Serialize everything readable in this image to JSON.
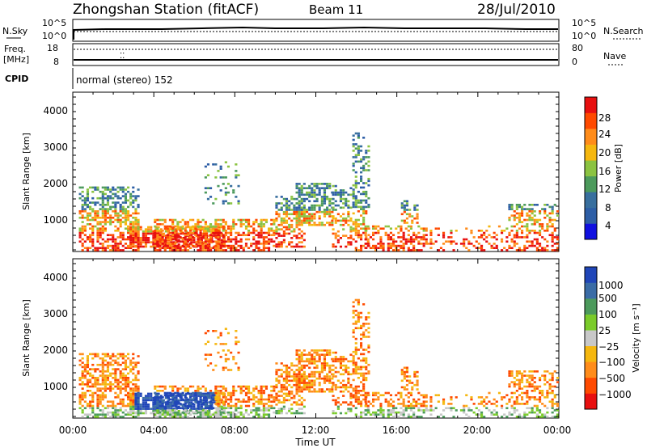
{
  "header": {
    "station": "Zhongshan Station (fitACF)",
    "beam": "Beam 11",
    "date": "28/Jul/2010"
  },
  "noise_panel": {
    "left_label": "N.Sky",
    "left_ticks": [
      "10^5",
      "10^0"
    ],
    "right_label": "N.Search",
    "right_ticks": [
      "10^5",
      "10^0"
    ]
  },
  "freq_panel": {
    "left_label_1": "Freq.",
    "left_label_2": "[MHz]",
    "left_ticks": [
      "18",
      "8"
    ],
    "right_label": "Nave",
    "right_ticks": [
      "80",
      "0"
    ]
  },
  "cpid_panel": {
    "label": "CPID",
    "mode_text": "normal (stereo) 152"
  },
  "chart_data": [
    {
      "type": "heatmap",
      "parameter": "Power",
      "ylabel": "Slant Range [km]",
      "y_ticks": [
        "1000",
        "2000",
        "3000",
        "4000"
      ],
      "ylim": [
        180,
        4600
      ],
      "x_range_hours": [
        0,
        24
      ],
      "colorbar_label": "Power [dB]",
      "colorbar_ticks": [
        "28",
        "24",
        "20",
        "16",
        "12",
        "8",
        "4"
      ],
      "colorbar_colors": [
        "#e81010",
        "#ff4a00",
        "#ff8c1a",
        "#f5b70f",
        "#8bc341",
        "#4c9a5c",
        "#386f9e",
        "#2d5ea6",
        "#1010e0"
      ]
    },
    {
      "type": "heatmap",
      "parameter": "Velocity",
      "ylabel": "Slant Range [km]",
      "y_ticks": [
        "1000",
        "2000",
        "3000",
        "4000"
      ],
      "ylim": [
        180,
        4600
      ],
      "x_range_hours": [
        0,
        24
      ],
      "colorbar_label": "Velocity [m s⁻¹]",
      "colorbar_ticks": [
        "1000",
        "500",
        "100",
        "25",
        "−25",
        "−100",
        "−500",
        "−1000"
      ],
      "colorbar_colors": [
        "#2046b8",
        "#3a6ca6",
        "#4c9a5c",
        "#7acb2a",
        "#c8c8c8",
        "#f5b70f",
        "#ff8c1a",
        "#ff4a00",
        "#e81010"
      ]
    }
  ],
  "x_axis": {
    "ticks": [
      "00:00",
      "04:00",
      "08:00",
      "12:00",
      "16:00",
      "20:00",
      "00:00"
    ],
    "label": "Time UT"
  }
}
